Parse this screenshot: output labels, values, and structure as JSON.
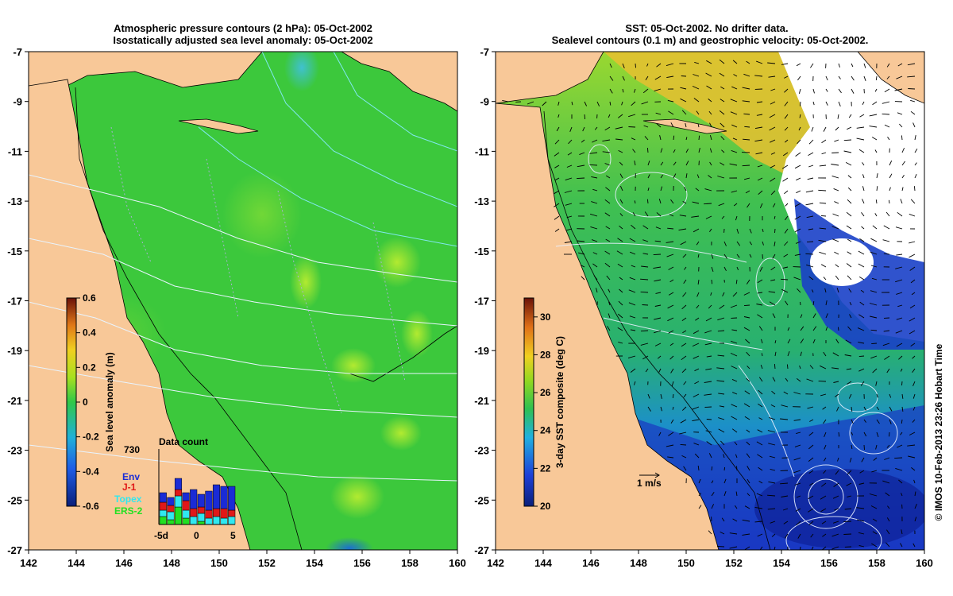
{
  "left_panel": {
    "title_line1": "Atmospheric pressure contours (2 hPa): 05-Oct-2002",
    "title_line2": "Isostatically adjusted sea level anomaly: 05-Oct-2002",
    "colorbar": {
      "label": "Sea level anomaly (m)",
      "ticks": [
        "0.6",
        "0.4",
        "0.2",
        "0",
        "-0.2",
        "-0.4",
        "-0.6"
      ],
      "range": [
        -0.6,
        0.6
      ]
    },
    "data_count": {
      "title": "Data count",
      "max_label": "730",
      "legend": [
        {
          "name": "Env",
          "color": "#1a2bd6"
        },
        {
          "name": "J-1",
          "color": "#e01818"
        },
        {
          "name": "Topex",
          "color": "#30e8f0"
        },
        {
          "name": "ERS-2",
          "color": "#22e022"
        }
      ],
      "x_ticks": [
        "-5d",
        "0",
        "5"
      ]
    }
  },
  "right_panel": {
    "title_line1": "SST: 05-Oct-2002. No drifter data.",
    "title_line2": "Sealevel contours (0.1 m) and geostrophic velocity: 05-Oct-2002.",
    "colorbar": {
      "label": "3-day SST composite (deg C)",
      "ticks": [
        "30",
        "28",
        "26",
        "24",
        "22",
        "20"
      ],
      "range": [
        20,
        31
      ]
    },
    "velocity_scale": "1 m/s",
    "credit": "© IMOS 10-Feb-2013 23:26 Hobart Time"
  },
  "map_axes": {
    "x_ticks": [
      "142",
      "144",
      "146",
      "148",
      "150",
      "152",
      "154",
      "156",
      "158",
      "160"
    ],
    "y_ticks": [
      "-7",
      "-9",
      "-11",
      "-13",
      "-15",
      "-17",
      "-19",
      "-21",
      "-23",
      "-25",
      "-27"
    ],
    "lon_range": [
      142,
      160
    ],
    "lat_range": [
      -27,
      -7
    ]
  },
  "colors": {
    "land": "#f8c898",
    "ocean_sla": "#3cc83c",
    "sst_green": "#3ebe52",
    "sst_blue": "#2050d0"
  }
}
